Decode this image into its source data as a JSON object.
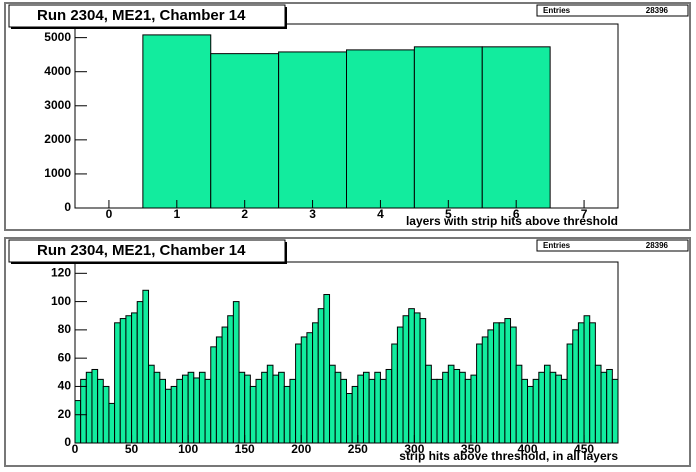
{
  "chart_data": [
    {
      "type": "histogram",
      "title": "Run 2304, ME21, Chamber 14",
      "stats_label": "Entries",
      "entries": 28396,
      "x_label": "layers with strip hits above threshold",
      "bins": [
        -0.5,
        0.5,
        1.5,
        2.5,
        3.5,
        4.5,
        5.5,
        6.5,
        7.5
      ],
      "values": [
        0,
        5080,
        4530,
        4580,
        4640,
        4730,
        4730,
        0
      ],
      "color": "#12ec9e",
      "xlim": [
        -0.5,
        7.5
      ],
      "xticks": [
        0,
        1,
        2,
        3,
        4,
        5,
        6,
        7
      ],
      "ylim": [
        0,
        5400
      ],
      "yticks": [
        0,
        1000,
        2000,
        3000,
        4000,
        5000
      ]
    },
    {
      "type": "histogram",
      "title": "Run 2304, ME21, Chamber 14",
      "stats_label": "Entries",
      "entries": 28396,
      "x_label": "strip hits above threshold, in all layers",
      "bins": [
        0,
        5,
        10,
        15,
        20,
        25,
        30,
        35,
        40,
        45,
        50,
        55,
        60,
        65,
        70,
        75,
        80,
        85,
        90,
        95,
        100,
        105,
        110,
        115,
        120,
        125,
        130,
        135,
        140,
        145,
        150,
        155,
        160,
        165,
        170,
        175,
        180,
        185,
        190,
        195,
        200,
        205,
        210,
        215,
        220,
        225,
        230,
        235,
        240,
        245,
        250,
        255,
        260,
        265,
        270,
        275,
        280,
        285,
        290,
        295,
        300,
        305,
        310,
        315,
        320,
        325,
        330,
        335,
        340,
        345,
        350,
        355,
        360,
        365,
        370,
        375,
        380,
        385,
        390,
        395,
        400,
        405,
        410,
        415,
        420,
        425,
        430,
        435,
        440,
        445,
        450,
        455,
        460,
        465,
        470,
        475,
        480
      ],
      "values": [
        30,
        45,
        50,
        52,
        45,
        40,
        28,
        85,
        88,
        90,
        92,
        100,
        108,
        55,
        50,
        45,
        38,
        40,
        45,
        48,
        50,
        46,
        50,
        45,
        68,
        75,
        82,
        90,
        100,
        50,
        48,
        40,
        45,
        50,
        55,
        48,
        50,
        40,
        45,
        70,
        75,
        78,
        85,
        95,
        105,
        55,
        50,
        45,
        35,
        40,
        48,
        50,
        45,
        50,
        45,
        52,
        70,
        82,
        90,
        95,
        92,
        88,
        55,
        45,
        45,
        50,
        55,
        52,
        50,
        45,
        48,
        70,
        75,
        80,
        85,
        85,
        88,
        82,
        55,
        45,
        40,
        45,
        50,
        55,
        50,
        48,
        45,
        70,
        80,
        85,
        90,
        85,
        55,
        50,
        52,
        45
      ],
      "color": "#12ec9e",
      "xlim": [
        0,
        480
      ],
      "xticks": [
        0,
        50,
        100,
        150,
        200,
        250,
        300,
        350,
        400,
        450
      ],
      "ylim": [
        0,
        128
      ],
      "yticks": [
        0,
        20,
        40,
        60,
        80,
        100,
        120
      ]
    }
  ]
}
